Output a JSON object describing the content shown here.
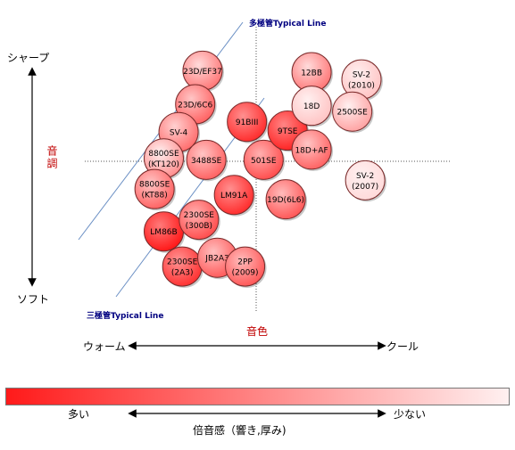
{
  "chart_data": {
    "type": "scatter",
    "xlabel": "音色",
    "ylabel": "音調",
    "x_axis": {
      "left": "ウォーム",
      "right": "クール"
    },
    "y_axis": {
      "top": "シャープ",
      "bottom": "ソフト"
    },
    "guide_lines": {
      "upper": "多極管Typical Line",
      "lower": "三極管Typical Line"
    },
    "colorbar": {
      "title": "倍音感（響き,厚み)",
      "left": "多い",
      "right": "少ない",
      "colors": [
        "#ff1a1a",
        "#fff0f0"
      ]
    },
    "x_range": [
      -10,
      10
    ],
    "y_range": [
      -10,
      10
    ],
    "points": [
      {
        "label": "23D/EF37",
        "x": -2.9,
        "y": 6.2,
        "richness": 0.45
      },
      {
        "label": "23D/6C6",
        "x": -3.3,
        "y": 3.9,
        "richness": 0.35
      },
      {
        "label": "SV-4",
        "x": -4.2,
        "y": 2.0,
        "richness": 0.4
      },
      {
        "label": "8800SE\n(KT120)",
        "x": -5.0,
        "y": 0.2,
        "richness": 0.55
      },
      {
        "label": "3488SE",
        "x": -2.7,
        "y": 0.1,
        "richness": 0.35
      },
      {
        "label": "8800SE\n(KT88)",
        "x": -5.5,
        "y": -1.9,
        "richness": 0.35
      },
      {
        "label": "LM86B",
        "x": -5.0,
        "y": -4.8,
        "richness": 0.0
      },
      {
        "label": "2300SE\n(300B)",
        "x": -3.1,
        "y": -4.0,
        "richness": 0.25
      },
      {
        "label": "2300SE\n(2A3)",
        "x": -4.0,
        "y": -7.2,
        "richness": 0.12
      },
      {
        "label": "JB2A3",
        "x": -2.1,
        "y": -6.6,
        "richness": 0.32
      },
      {
        "label": "2PP\n(2009)",
        "x": -0.6,
        "y": -7.2,
        "richness": 0.3
      },
      {
        "label": "LM91A",
        "x": -1.2,
        "y": -2.3,
        "richness": 0.1
      },
      {
        "label": "91BIII",
        "x": -0.5,
        "y": 2.7,
        "richness": 0.1
      },
      {
        "label": "501SE",
        "x": 0.4,
        "y": 0.1,
        "richness": 0.25
      },
      {
        "label": "19D(6L6)",
        "x": 1.6,
        "y": -2.6,
        "richness": 0.3
      },
      {
        "label": "9TSE",
        "x": 1.7,
        "y": 2.1,
        "richness": 0.05
      },
      {
        "label": "18D+AF",
        "x": 3.0,
        "y": 0.8,
        "richness": 0.35
      },
      {
        "label": "12BB",
        "x": 3.0,
        "y": 6.1,
        "richness": 0.45
      },
      {
        "label": "18D",
        "x": 3.0,
        "y": 3.8,
        "richness": 0.8
      },
      {
        "label": "SV-2\n(2010)",
        "x": 5.7,
        "y": 5.6,
        "richness": 0.8
      },
      {
        "label": "2500SE",
        "x": 5.2,
        "y": 3.4,
        "richness": 0.65
      },
      {
        "label": "SV-2\n(2007)",
        "x": 5.9,
        "y": -1.3,
        "richness": 0.9
      }
    ]
  }
}
